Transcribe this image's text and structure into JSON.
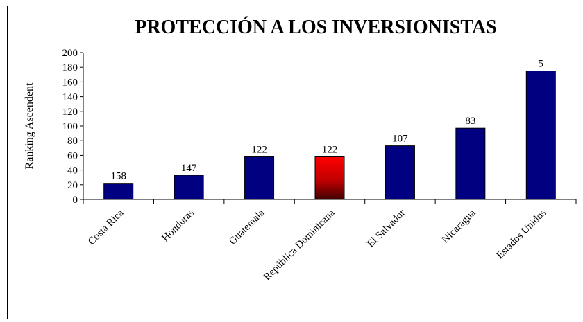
{
  "chart_data": {
    "type": "bar",
    "title": "PROTECCIÓN A LOS INVERSIONISTAS",
    "y_label": "Ranking Ascendent",
    "categories": [
      "Costa Rica",
      "Honduras",
      "Guatemala",
      "República Dominicana",
      "El Salvador",
      "Nicaragua",
      "Estados Unidos"
    ],
    "values": [
      22,
      33,
      58,
      58,
      73,
      97,
      175
    ],
    "rank_labels": [
      158,
      147,
      122,
      122,
      107,
      83,
      5
    ],
    "colors": [
      "#000080",
      "#000080",
      "#000080",
      "gradient-red",
      "#000080",
      "#000080",
      "#000080"
    ],
    "ylim": [
      0,
      200
    ],
    "yticks": [
      0,
      20,
      40,
      60,
      80,
      100,
      120,
      140,
      160,
      180,
      200
    ],
    "grid": false
  }
}
